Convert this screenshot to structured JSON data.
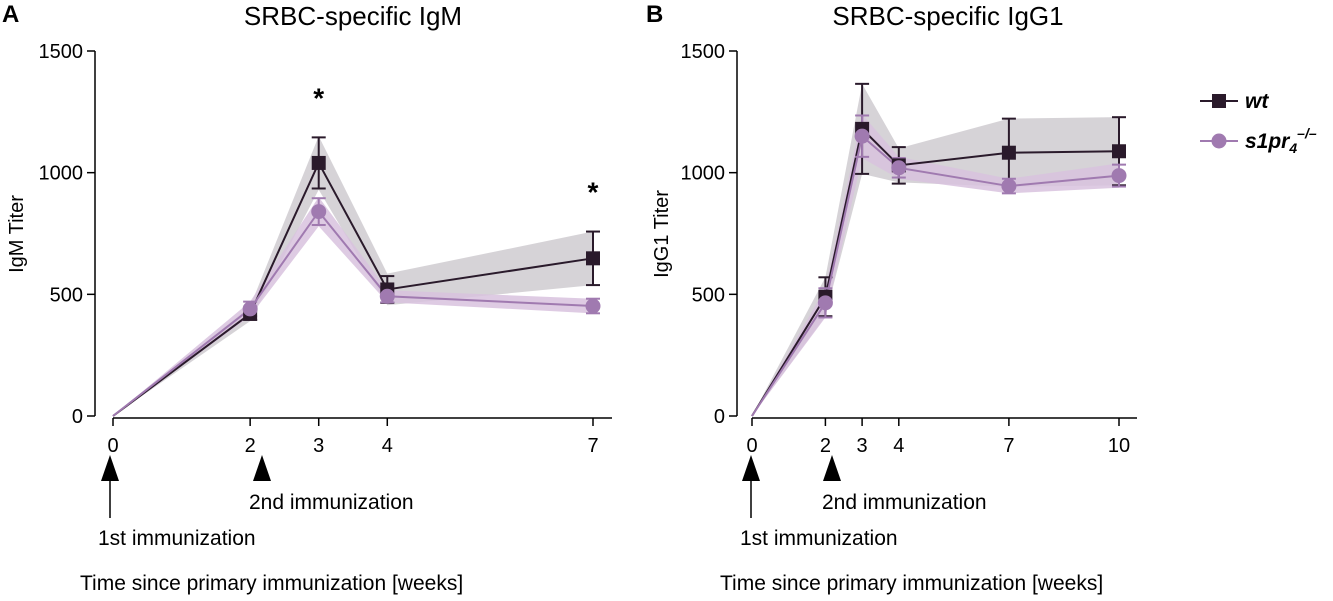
{
  "colors": {
    "wt": "#2a1a2b",
    "s1pr4": "#a07ab0",
    "wt_band": "#cfcbd0",
    "s1pr4_band": "#d8c2de"
  },
  "legend": {
    "wt": "wt",
    "s1pr4_base": "s1pr",
    "s1pr4_sub": "4",
    "s1pr4_sup": "–/–"
  },
  "annotations": {
    "first_immunization": "1st immunization",
    "second_immunization": "2nd immunization",
    "xlabel": "Time since primary immunization [weeks]"
  },
  "chart_data": [
    {
      "panel": "A",
      "type": "line",
      "title": "SRBC-specific IgM",
      "ylabel": "IgM Titer",
      "xlabel": "Time since primary immunization [weeks]",
      "xlim": [
        0,
        7
      ],
      "ylim": [
        0,
        1500
      ],
      "xticks": [
        0,
        2,
        3,
        4,
        7
      ],
      "yticks": [
        0,
        500,
        1000,
        1500
      ],
      "arrows_at": [
        0,
        2.2
      ],
      "significance": [
        {
          "x": 3,
          "label": "*"
        },
        {
          "x": 7,
          "label": "*"
        }
      ],
      "series": [
        {
          "name": "wt",
          "x": [
            0,
            2,
            3,
            4,
            7
          ],
          "y": [
            0,
            420,
            1040,
            520,
            648
          ],
          "err": [
            0,
            25,
            105,
            55,
            110
          ],
          "band": [
            0,
            30,
            110,
            65,
            110
          ]
        },
        {
          "name": "s1pr4",
          "x": [
            0,
            2,
            3,
            4,
            7
          ],
          "y": [
            0,
            440,
            840,
            492,
            452
          ],
          "err": [
            0,
            30,
            55,
            25,
            30
          ],
          "band": [
            0,
            30,
            60,
            25,
            30
          ]
        }
      ]
    },
    {
      "panel": "B",
      "type": "line",
      "title": "SRBC-specific IgG1",
      "ylabel": "IgG1 Titer",
      "xlabel": "Time since primary immunization [weeks]",
      "xlim": [
        0,
        10
      ],
      "ylim": [
        0,
        1500
      ],
      "xticks": [
        0,
        2,
        3,
        4,
        7,
        10
      ],
      "yticks": [
        0,
        500,
        1000,
        1500
      ],
      "arrows_at": [
        0,
        2.2
      ],
      "significance": [],
      "series": [
        {
          "name": "wt",
          "x": [
            0,
            2,
            3,
            4,
            7,
            10
          ],
          "y": [
            0,
            490,
            1180,
            1030,
            1082,
            1088
          ],
          "err": [
            0,
            80,
            185,
            75,
            140,
            140
          ],
          "band": [
            0,
            80,
            185,
            70,
            140,
            140
          ]
        },
        {
          "name": "s1pr4",
          "x": [
            0,
            2,
            3,
            4,
            7,
            10
          ],
          "y": [
            0,
            465,
            1150,
            1020,
            945,
            988
          ],
          "err": [
            0,
            60,
            85,
            40,
            30,
            45
          ],
          "band": [
            0,
            60,
            90,
            45,
            30,
            50
          ]
        }
      ]
    }
  ]
}
